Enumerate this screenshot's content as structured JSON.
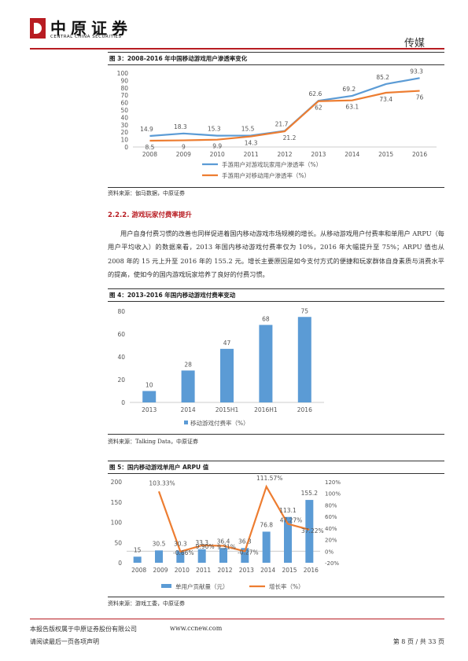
{
  "header": {
    "logo_cn": "中原证券",
    "logo_en": "CENTRAL CHINA SECURITIES",
    "category": "传媒"
  },
  "figure3": {
    "title": "图 3：2008-2016 年中国移动游戏用户渗透率变化",
    "source": "资料来源：伽马数据，中原证券"
  },
  "section": {
    "heading": "2.2.2. 游戏玩家付费率提升",
    "paragraph": "用户自身付费习惯的改善也同样促进着国内移动游戏市场规模的增长。从移动游戏用户付费率和单用户 ARPU（每用户平均收入）的数据来看，2013 年国内移动游戏付费率仅为 10%，2016 年大幅提升至 75%；ARPU 值也从 2008 年的 15 元上升至 2016 年的 155.2 元。增长主要原因是如今支付方式的便捷和玩家群体自身素质与消费水平的提高，使如今的国内游戏玩家培养了良好的付费习惯。"
  },
  "figure4": {
    "title": "图 4：2013-2016 年国内移动游戏付费率变动",
    "source": "资料来源：Talking Data，中原证券"
  },
  "figure5": {
    "title": "图 5：国内移动游戏单用户 ARPU 值",
    "source": "资料来源：游戏工委，中原证券"
  },
  "footer": {
    "copyright": "本报告版权属于中原证券股份有限公司",
    "website": "www.ccnew.com",
    "notice": "请阅读最后一页各项声明",
    "page": "第 8 页 / 共 33 页"
  },
  "chart_data": [
    {
      "type": "line",
      "x": [
        "2008",
        "2009",
        "2010",
        "2011",
        "2012",
        "2013",
        "2014",
        "2015",
        "2016"
      ],
      "ylim": [
        0,
        100
      ],
      "yticks": [
        0,
        10,
        20,
        30,
        40,
        50,
        60,
        70,
        80,
        90,
        100
      ],
      "series": [
        {
          "name": "手游用户对游戏玩家用户渗透率（%）",
          "color": "#5b9bd5",
          "values": [
            14.9,
            18.3,
            15.3,
            15.5,
            21.7,
            62.6,
            69.2,
            85.2,
            93.3
          ]
        },
        {
          "name": "手游用户对移动用户渗透率（%）",
          "color": "#ed7d31",
          "values": [
            8.5,
            9,
            9.9,
            14.3,
            21.2,
            62,
            63.1,
            73.4,
            76
          ]
        }
      ],
      "labels_series1": [
        "14.9",
        "18.3",
        "15.3",
        "15.5",
        "21.7",
        "62.6",
        "69.2",
        "85.2",
        "93.3"
      ],
      "labels_series2": [
        "8.5",
        "9",
        "9.9",
        "14.3",
        "21.2",
        "62",
        "63.1",
        "73.4",
        "76"
      ],
      "grid": false,
      "legend": "bottom"
    },
    {
      "type": "bar",
      "categories": [
        "2013",
        "2014",
        "2015H1",
        "2016H1",
        "2016"
      ],
      "series": [
        {
          "name": "移动游戏付费率（%）",
          "color": "#5b9bd5",
          "values": [
            10,
            28,
            47,
            68,
            75
          ]
        }
      ],
      "ylim": [
        0,
        80
      ],
      "yticks": [
        0,
        20,
        40,
        60,
        80
      ],
      "grid": false,
      "legend": "bottom"
    },
    {
      "type": "bar",
      "categories": [
        "2008",
        "2009",
        "2010",
        "2011",
        "2012",
        "2013",
        "2014",
        "2015",
        "2016"
      ],
      "series": [
        {
          "name": "单用户贡献量（元）",
          "color": "#5b9bd5",
          "axis": "left",
          "values": [
            15,
            30.5,
            30.3,
            33.3,
            36.4,
            36.3,
            76.8,
            113.1,
            155.2
          ]
        },
        {
          "name": "增长率（%）",
          "color": "#ed7d31",
          "axis": "right",
          "type": "line",
          "values": [
            null,
            103.33,
            -0.66,
            9.9,
            9.31,
            -0.27,
            111.57,
            47.27,
            37.22
          ]
        }
      ],
      "bar_labels": [
        "15",
        "30.5",
        "30.3",
        "33.3",
        "36.4",
        "36.3",
        "76.8",
        "113.1",
        "155.2"
      ],
      "line_labels": [
        "",
        "103.33%",
        "-0.66%",
        "9.90%",
        "9.31%",
        "-0.27%",
        "111.57%",
        "47.27%",
        "37.22%"
      ],
      "ylim": [
        0,
        200
      ],
      "yticks": [
        0,
        50,
        100,
        150,
        200
      ],
      "y2lim": [
        -20,
        120
      ],
      "y2ticks": [
        "-20%",
        "0%",
        "20%",
        "40%",
        "60%",
        "80%",
        "100%",
        "120%"
      ],
      "grid": false,
      "legend": "bottom"
    }
  ]
}
